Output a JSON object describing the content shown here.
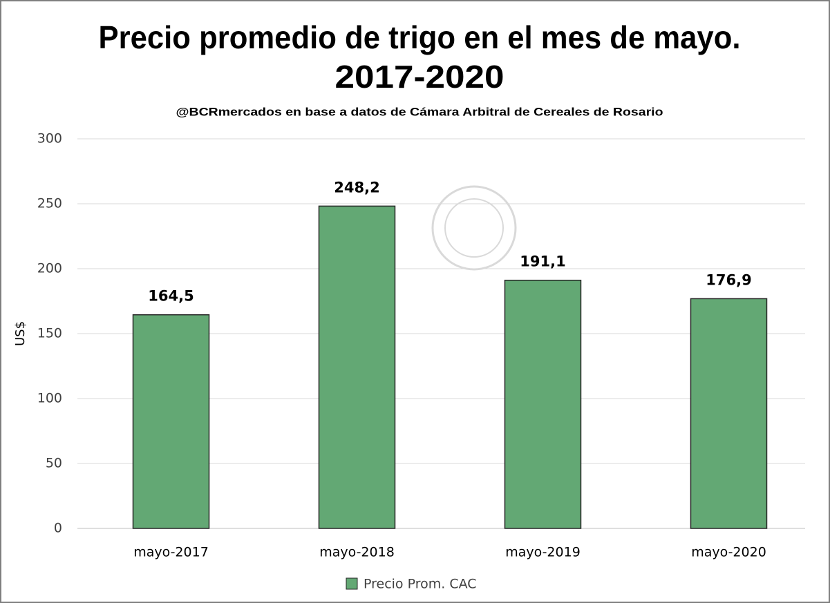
{
  "chart_data": {
    "type": "bar",
    "title": [
      "Precio promedio de trigo en el mes de mayo.",
      "2017-2020"
    ],
    "subtitle": "@BCRmercados en base a datos de Cámara Arbitral de Cereales de Rosario",
    "y_label": "US$",
    "categories": [
      "mayo-2017",
      "mayo-2018",
      "mayo-2019",
      "mayo-2020"
    ],
    "series": [
      {
        "name": "Precio Prom. CAC",
        "color": "#63a874",
        "values": [
          164.5,
          248.2,
          191.1,
          176.9
        ],
        "value_labels": [
          "164,5",
          "248,2",
          "191,1",
          "176,9"
        ]
      }
    ],
    "ylim": [
      0,
      300
    ],
    "yticks": [
      0,
      50,
      100,
      150,
      200,
      250,
      300
    ],
    "grid": true,
    "legend": "bottom"
  }
}
